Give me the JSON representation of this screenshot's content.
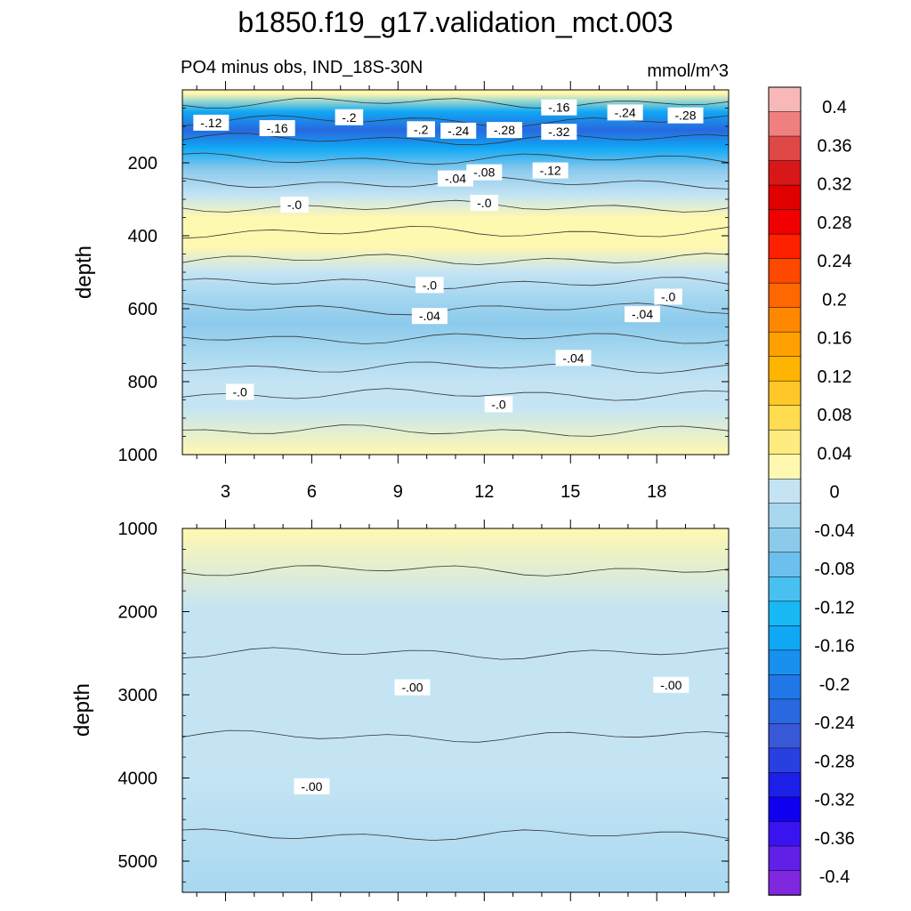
{
  "title": "b1850.f19_g17.validation_mct.003",
  "subtitle_left": "PO4 minus obs, IND_18S-30N",
  "subtitle_right": "mmol/m^3",
  "chart_data": [
    {
      "type": "heatmap",
      "panel": "upper",
      "ylabel": "depth",
      "xlim": [
        1.5,
        20.5
      ],
      "ylim": [
        1000,
        0
      ],
      "xticks": [
        3,
        6,
        9,
        12,
        15,
        18
      ],
      "yticks": [
        200,
        400,
        600,
        800,
        1000
      ],
      "grid": false,
      "bands": [
        {
          "y": 10,
          "value": 0.02
        },
        {
          "y": 60,
          "value": -0.14
        },
        {
          "y": 110,
          "value": -0.24
        },
        {
          "y": 160,
          "value": -0.14
        },
        {
          "y": 220,
          "value": -0.06
        },
        {
          "y": 290,
          "value": -0.01
        },
        {
          "y": 350,
          "value": 0.02
        },
        {
          "y": 430,
          "value": 0.03
        },
        {
          "y": 500,
          "value": 0.01
        },
        {
          "y": 560,
          "value": -0.02
        },
        {
          "y": 640,
          "value": -0.04
        },
        {
          "y": 720,
          "value": -0.03
        },
        {
          "y": 800,
          "value": -0.01
        },
        {
          "y": 870,
          "value": 0.01
        },
        {
          "y": 1000,
          "value": 0.02
        }
      ],
      "contour_labels": [
        {
          "text": "-.12",
          "x": 2.5,
          "y": 90
        },
        {
          "text": "-.16",
          "x": 4.8,
          "y": 105
        },
        {
          "text": "-.2",
          "x": 7.3,
          "y": 75
        },
        {
          "text": "-.2",
          "x": 9.8,
          "y": 108
        },
        {
          "text": "-.24",
          "x": 11.1,
          "y": 112
        },
        {
          "text": "-.28",
          "x": 12.7,
          "y": 110
        },
        {
          "text": "-.16",
          "x": 14.6,
          "y": 48
        },
        {
          "text": "-.24",
          "x": 16.9,
          "y": 62
        },
        {
          "text": "-.28",
          "x": 19.0,
          "y": 70
        },
        {
          "text": "-.32",
          "x": 14.6,
          "y": 115
        },
        {
          "text": "-.04",
          "x": 11.0,
          "y": 243
        },
        {
          "text": "-.08",
          "x": 12.0,
          "y": 226
        },
        {
          "text": "-.12",
          "x": 14.3,
          "y": 221
        },
        {
          "text": "-.0",
          "x": 5.4,
          "y": 315
        },
        {
          "text": "-.0",
          "x": 12.0,
          "y": 310
        },
        {
          "text": "-.0",
          "x": 10.1,
          "y": 535
        },
        {
          "text": "-.0",
          "x": 18.4,
          "y": 567
        },
        {
          "text": "-.04",
          "x": 10.1,
          "y": 620
        },
        {
          "text": "-.04",
          "x": 17.5,
          "y": 615
        },
        {
          "text": "-.04",
          "x": 15.1,
          "y": 735
        },
        {
          "text": "-.0",
          "x": 3.5,
          "y": 828
        },
        {
          "text": "-.0",
          "x": 12.5,
          "y": 862
        }
      ]
    },
    {
      "type": "heatmap",
      "panel": "lower",
      "ylabel": "depth",
      "xlim": [
        1.5,
        20.5
      ],
      "ylim": [
        5375,
        1000
      ],
      "yticks": [
        1000,
        2000,
        3000,
        4000,
        5000
      ],
      "grid": false,
      "bands": [
        {
          "y": 1000,
          "value": 0.02
        },
        {
          "y": 2000,
          "value": 0.01
        },
        {
          "y": 3000,
          "value": -0.01
        },
        {
          "y": 4000,
          "value": -0.01
        },
        {
          "y": 5375,
          "value": -0.02
        }
      ],
      "contour_labels": [
        {
          "text": "-.00",
          "x": 9.5,
          "y": 2910
        },
        {
          "text": "-.00",
          "x": 18.5,
          "y": 2880
        },
        {
          "text": "-.00",
          "x": 6.0,
          "y": 4100
        }
      ]
    }
  ],
  "colorbar": {
    "labels": [
      "0.4",
      "0.36",
      "0.32",
      "0.28",
      "0.24",
      "0.2",
      "0.16",
      "0.12",
      "0.08",
      "0.04",
      "0",
      "-0.04",
      "-0.08",
      "-0.12",
      "-0.16",
      "-0.2",
      "-0.24",
      "-0.28",
      "-0.32",
      "-0.36",
      "-0.4"
    ],
    "colors": [
      "#f8b8b8",
      "#f08080",
      "#e04848",
      "#d81818",
      "#e00000",
      "#f00000",
      "#ff2000",
      "#ff4800",
      "#ff6800",
      "#ff8800",
      "#ffa000",
      "#ffb400",
      "#ffc828",
      "#ffdc50",
      "#ffec80",
      "#fff8b0",
      "#c4e4f4",
      "#a8d8f0",
      "#8ccaec",
      "#6cc0ee",
      "#48c0f0",
      "#18b8f4",
      "#10a8f4",
      "#1890f0",
      "#2078e8",
      "#2868e0",
      "#3858d8",
      "#2840e0",
      "#1c20e8",
      "#1000f0",
      "#3a14f0",
      "#6020e8",
      "#8028e0"
    ]
  }
}
